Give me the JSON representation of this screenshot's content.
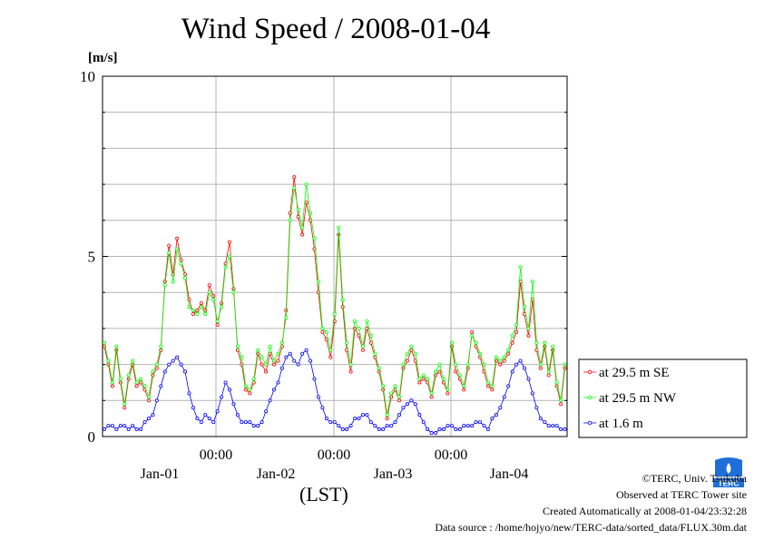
{
  "chart_data": {
    "type": "line",
    "title": "Wind Speed / 2008-01-04",
    "ylabel": "[m/s]",
    "xlabel": "(LST)",
    "ylim": [
      0,
      10
    ],
    "y_ticks": [
      "0",
      "5",
      "10"
    ],
    "x_tick_labels": [
      "00:00",
      "00:00",
      "00:00"
    ],
    "day_labels": [
      "Jan-01",
      "Jan-02",
      "Jan-03",
      "Jan-04"
    ],
    "grid": true,
    "legend_position": "right",
    "series": [
      {
        "name": "at 29.5 m SE",
        "color": "#ff0000",
        "values": [
          2.5,
          2.0,
          1.4,
          2.4,
          1.5,
          0.8,
          1.6,
          2.0,
          1.4,
          1.5,
          1.3,
          1.0,
          1.7,
          1.9,
          2.4,
          4.3,
          5.3,
          4.5,
          5.5,
          4.9,
          4.5,
          3.8,
          3.4,
          3.5,
          3.7,
          3.5,
          4.2,
          3.9,
          3.1,
          3.7,
          4.8,
          5.4,
          4.1,
          2.4,
          2.0,
          1.3,
          1.2,
          1.5,
          2.3,
          2.0,
          1.8,
          2.3,
          2.0,
          2.1,
          2.5,
          3.5,
          6.2,
          7.2,
          6.1,
          5.6,
          6.5,
          6.0,
          5.2,
          4.0,
          2.9,
          2.7,
          2.2,
          3.2,
          5.6,
          3.6,
          2.4,
          1.8,
          3.0,
          2.8,
          2.4,
          3.0,
          2.6,
          2.2,
          1.8,
          1.3,
          0.5,
          1.1,
          1.3,
          1.0,
          1.9,
          2.1,
          2.4,
          2.1,
          1.5,
          1.6,
          1.5,
          1.1,
          1.7,
          1.8,
          1.5,
          1.2,
          2.5,
          1.8,
          1.6,
          1.3,
          1.9,
          2.9,
          2.5,
          2.2,
          1.8,
          1.4,
          1.3,
          2.1,
          2.0,
          2.1,
          2.3,
          2.6,
          2.9,
          4.3,
          3.4,
          2.8,
          3.8,
          2.4,
          1.9,
          2.5,
          1.7,
          2.4,
          1.4,
          0.9,
          1.9
        ]
      },
      {
        "name": "at 29.5 m NW",
        "color": "#00ff00",
        "values": [
          2.6,
          2.1,
          1.5,
          2.5,
          1.6,
          0.9,
          1.7,
          2.1,
          1.5,
          1.6,
          1.4,
          1.1,
          1.8,
          2.0,
          2.5,
          4.2,
          5.1,
          4.3,
          5.2,
          4.8,
          4.4,
          3.6,
          3.5,
          3.4,
          3.6,
          3.4,
          4.0,
          3.8,
          3.2,
          3.6,
          4.7,
          5.0,
          4.0,
          2.5,
          2.2,
          1.4,
          1.3,
          1.6,
          2.4,
          2.2,
          2.0,
          2.5,
          2.1,
          2.3,
          2.6,
          3.3,
          6.0,
          6.9,
          6.3,
          5.8,
          7.0,
          6.2,
          5.5,
          4.3,
          3.0,
          2.9,
          2.4,
          3.4,
          5.8,
          3.8,
          2.6,
          2.0,
          3.2,
          3.0,
          2.5,
          3.2,
          2.8,
          2.3,
          1.9,
          1.4,
          0.6,
          1.2,
          1.4,
          1.1,
          2.0,
          2.3,
          2.5,
          2.3,
          1.6,
          1.7,
          1.6,
          1.2,
          1.8,
          2.0,
          1.6,
          1.3,
          2.6,
          2.0,
          1.7,
          1.4,
          2.0,
          2.8,
          2.6,
          2.3,
          2.0,
          1.5,
          1.4,
          2.2,
          2.1,
          2.2,
          2.4,
          2.8,
          3.1,
          4.7,
          3.6,
          3.0,
          4.3,
          2.6,
          2.0,
          2.6,
          1.8,
          2.5,
          1.5,
          1.0,
          2.0
        ]
      },
      {
        "name": "at 1.6 m",
        "color": "#0000ff",
        "values": [
          0.2,
          0.3,
          0.3,
          0.2,
          0.3,
          0.3,
          0.2,
          0.3,
          0.2,
          0.2,
          0.4,
          0.5,
          0.6,
          1.0,
          1.4,
          1.8,
          2.0,
          2.1,
          2.2,
          2.0,
          1.8,
          1.2,
          0.8,
          0.5,
          0.4,
          0.6,
          0.5,
          0.4,
          0.7,
          1.1,
          1.5,
          1.3,
          0.9,
          0.6,
          0.4,
          0.4,
          0.4,
          0.3,
          0.3,
          0.4,
          0.7,
          1.0,
          1.3,
          1.5,
          1.9,
          2.2,
          2.3,
          2.1,
          2.0,
          2.3,
          2.4,
          2.1,
          1.6,
          1.1,
          0.8,
          0.5,
          0.4,
          0.4,
          0.3,
          0.2,
          0.2,
          0.3,
          0.5,
          0.5,
          0.6,
          0.6,
          0.4,
          0.3,
          0.2,
          0.2,
          0.3,
          0.3,
          0.4,
          0.6,
          0.8,
          0.9,
          1.0,
          0.9,
          0.6,
          0.4,
          0.2,
          0.1,
          0.1,
          0.2,
          0.2,
          0.3,
          0.3,
          0.2,
          0.2,
          0.3,
          0.3,
          0.3,
          0.4,
          0.4,
          0.3,
          0.2,
          0.5,
          0.6,
          0.8,
          1.1,
          1.4,
          1.8,
          2.0,
          2.1,
          1.9,
          1.6,
          1.2,
          0.8,
          0.5,
          0.4,
          0.3,
          0.3,
          0.3,
          0.2,
          0.2
        ]
      }
    ]
  },
  "credits": {
    "copyright": "©TERC, Univ. Tsukuba",
    "observed": "Observed at TERC Tower site",
    "created": "Created Automatically at 2008-01-04/23:32:28",
    "source": "Data source : /home/hojyo/new/TERC-data/sorted_data/FLUX.30m.dat"
  },
  "logo_text": "TERC"
}
